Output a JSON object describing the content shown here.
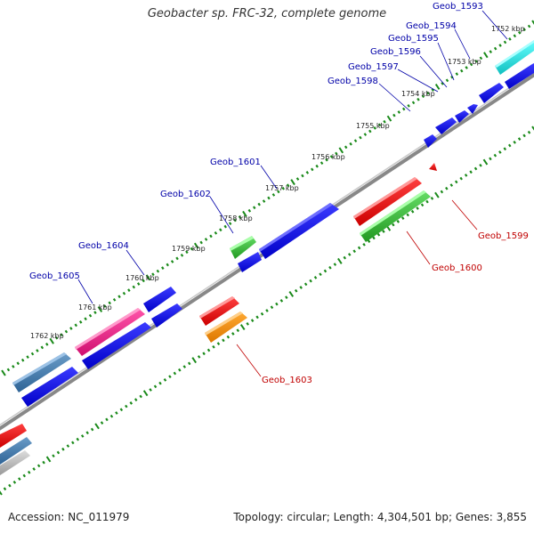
{
  "title": "Geobacter sp. FRC-32, complete genome",
  "footer": {
    "accession": "Accession: NC_011979",
    "topology": "Topology: circular; Length: 4,304,501 bp; Genes: 3,855"
  },
  "ticks": [
    "1752 kbp",
    "1753 kbp",
    "1754 kbp",
    "1755 kbp",
    "1756 kbp",
    "1757 kbp",
    "1758 kbp",
    "1759 kbp",
    "1760 kbp",
    "1761 kbp",
    "1762 kbp"
  ],
  "colors": {
    "blue": "#0000e6",
    "red": "#e60000",
    "green": "#33bb33",
    "magenta": "#e8208a",
    "steel": "#3f78ad",
    "cyan": "#22dddd",
    "orange": "#ee8800",
    "silver": "#b8b8b8",
    "labelBlue": "#0000a8",
    "labelRed": "#c00000",
    "tickGreen": "#1a8a1a"
  },
  "genes_labeled": [
    {
      "name": "Geob_1593",
      "side": "forward",
      "color": "cyan"
    },
    {
      "name": "Geob_1594",
      "side": "forward",
      "color": "blue"
    },
    {
      "name": "Geob_1595",
      "side": "forward",
      "color": "blue"
    },
    {
      "name": "Geob_1596",
      "side": "forward",
      "color": "blue"
    },
    {
      "name": "Geob_1597",
      "side": "forward",
      "color": "blue"
    },
    {
      "name": "Geob_1598",
      "side": "forward",
      "color": "blue"
    },
    {
      "name": "Geob_1599",
      "side": "reverse",
      "color": "red"
    },
    {
      "name": "Geob_1600",
      "side": "reverse",
      "color": "red"
    },
    {
      "name": "Geob_1601",
      "side": "forward",
      "color": "blue"
    },
    {
      "name": "Geob_1602",
      "side": "forward",
      "color": "green"
    },
    {
      "name": "Geob_1603",
      "side": "reverse",
      "color": "red"
    },
    {
      "name": "Geob_1604",
      "side": "forward",
      "color": "blue"
    },
    {
      "name": "Geob_1605",
      "side": "forward",
      "color": "magenta"
    }
  ]
}
